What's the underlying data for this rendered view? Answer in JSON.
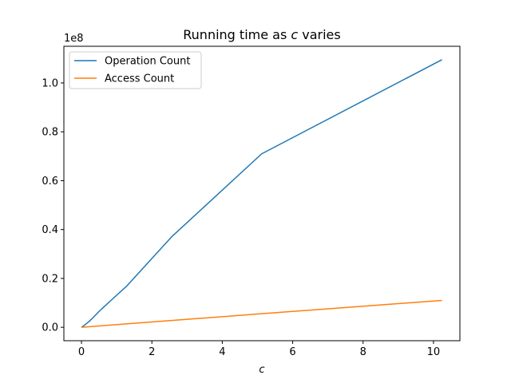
{
  "chart_data": {
    "type": "line",
    "title_prefix": "Running time as ",
    "title_var": "c",
    "title_suffix": " varies",
    "xlabel": "c",
    "ylabel": "",
    "y_offset_label": "1e8",
    "xlim": [
      -0.5,
      10.75
    ],
    "ylim": [
      -5500000,
      115000000
    ],
    "x_ticks": [
      0,
      2,
      4,
      6,
      8,
      10
    ],
    "x_tick_labels": [
      "0",
      "2",
      "4",
      "6",
      "8",
      "10"
    ],
    "y_ticks": [
      0,
      20000000,
      40000000,
      60000000,
      80000000,
      100000000
    ],
    "y_tick_labels": [
      "0.0",
      "0.2",
      "0.4",
      "0.6",
      "0.8",
      "1.0"
    ],
    "grid": false,
    "legend_position": "top-left",
    "series": [
      {
        "name": "Operation Count",
        "color": "#1f77b4",
        "x": [
          0,
          0.1,
          0.2,
          0.32,
          0.5,
          0.8,
          1.28,
          2.56,
          5.12,
          10.24
        ],
        "y": [
          0,
          1000000,
          2200000,
          3800000,
          6500000,
          10500000,
          16800000,
          37000000,
          71000000,
          109500000
        ]
      },
      {
        "name": "Access Count",
        "color": "#ff7f0e",
        "x": [
          0,
          0.1,
          0.2,
          0.32,
          0.5,
          0.8,
          1.28,
          2.56,
          5.12,
          10.24
        ],
        "y": [
          0,
          110000,
          220000,
          350000,
          540000,
          870000,
          1390000,
          2780000,
          5560000,
          11000000
        ]
      }
    ]
  }
}
